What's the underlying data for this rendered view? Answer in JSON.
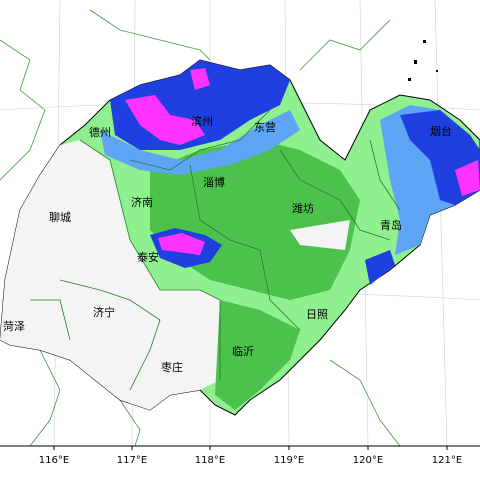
{
  "map": {
    "cities": [
      "德州",
      "滨州",
      "东营",
      "烟台",
      "聊城",
      "济南",
      "淄博",
      "潍坊",
      "青岛",
      "泰安",
      "济宁",
      "菏泽",
      "临沂",
      "日照",
      "枣庄"
    ],
    "longitude_labels": [
      "116°E",
      "117°E",
      "118°E",
      "119°E",
      "120°E",
      "121°E"
    ]
  }
}
